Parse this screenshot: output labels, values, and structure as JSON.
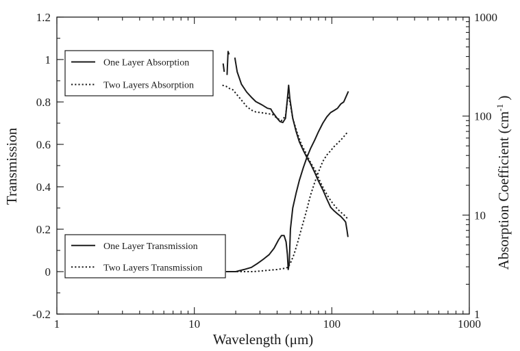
{
  "chart_data": {
    "type": "line",
    "title": "",
    "xlabel": "Wavelength (μm)",
    "ylabel_left": "Transmission",
    "ylabel_right_main": "Absorption Coefficient (cm",
    "ylabel_right_sup": "-1",
    "ylabel_right_close": " )",
    "x_scale": "log",
    "xlim": [
      1,
      1000
    ],
    "ylim_left": [
      -0.2,
      1.2
    ],
    "ylim_right": [
      1,
      1000
    ],
    "y_right_scale": "log",
    "grid": false,
    "x_ticks": [
      1,
      10,
      100,
      1000
    ],
    "x_tick_labels": [
      "1",
      "10",
      "100",
      "1000"
    ],
    "y_left_ticks": [
      -0.2,
      0,
      0.2,
      0.4,
      0.6,
      0.8,
      1,
      1.2
    ],
    "y_left_tick_labels": [
      "-0.2",
      "0",
      "0.2",
      "0.4",
      "0.6",
      "0.8",
      "1",
      "1.2"
    ],
    "y_right_ticks": [
      1,
      10,
      100,
      1000
    ],
    "y_right_tick_labels": [
      "1",
      "10",
      "100",
      "1000"
    ],
    "legends": [
      {
        "position": "upper-left",
        "entries": [
          {
            "label": "One Layer Absorption",
            "style": "solid"
          },
          {
            "label": "Two Layers Absorption",
            "style": "dotted"
          }
        ]
      },
      {
        "position": "lower-left",
        "entries": [
          {
            "label": "One Layer Transmission",
            "style": "solid"
          },
          {
            "label": "Two Layers Transmission",
            "style": "dotted"
          }
        ]
      }
    ],
    "series": [
      {
        "name": "One Layer Absorption",
        "axis": "right",
        "style": "solid",
        "segments": [
          [
            [
              16.2,
              340
            ],
            [
              16.5,
              280
            ]
          ],
          [
            [
              17.3,
              260
            ],
            [
              17.6,
              450
            ],
            [
              17.9,
              420
            ]
          ],
          [
            [
              19.7,
              390
            ],
            [
              20.5,
              280
            ],
            [
              22,
              210
            ],
            [
              24,
              175
            ],
            [
              26,
              155
            ],
            [
              28,
              140
            ],
            [
              31,
              130
            ],
            [
              34,
              120
            ],
            [
              36,
              118
            ],
            [
              37,
              110
            ],
            [
              40,
              95
            ],
            [
              42,
              88
            ],
            [
              44,
              86
            ],
            [
              46,
              95
            ],
            [
              47.5,
              150
            ],
            [
              48.5,
              205
            ],
            [
              49.5,
              150
            ],
            [
              52,
              95
            ],
            [
              55,
              70
            ],
            [
              58,
              55
            ],
            [
              62,
              45
            ],
            [
              66,
              38
            ],
            [
              70,
              33
            ],
            [
              75,
              27
            ],
            [
              80,
              22
            ],
            [
              86,
              18
            ],
            [
              92,
              14.5
            ],
            [
              98,
              12
            ],
            [
              104,
              11
            ],
            [
              110,
              10.3
            ],
            [
              116,
              9.7
            ],
            [
              122,
              9
            ],
            [
              126,
              8.5
            ],
            [
              129,
              7
            ],
            [
              131,
              6
            ]
          ]
        ]
      },
      {
        "name": "Two Layers Absorption",
        "axis": "right",
        "style": "dotted",
        "segments": [
          [
            [
              16,
              205
            ],
            [
              17,
              200
            ],
            [
              18,
              190
            ],
            [
              19,
              185
            ],
            [
              20,
              170
            ],
            [
              22,
              145
            ],
            [
              24,
              125
            ],
            [
              26,
              115
            ],
            [
              28,
              110
            ],
            [
              31,
              108
            ],
            [
              34,
              106
            ],
            [
              37,
              104
            ],
            [
              40,
              95
            ],
            [
              43,
              90
            ],
            [
              46,
              100
            ],
            [
              48,
              160
            ],
            [
              49.5,
              140
            ],
            [
              52,
              95
            ],
            [
              56,
              68
            ],
            [
              60,
              52
            ],
            [
              65,
              42
            ],
            [
              70,
              34
            ],
            [
              76,
              28
            ],
            [
              82,
              22
            ],
            [
              88,
              18
            ],
            [
              95,
              15
            ],
            [
              102,
              13
            ],
            [
              110,
              11.5
            ],
            [
              118,
              10.5
            ],
            [
              125,
              9.8
            ],
            [
              130,
              9.2
            ]
          ]
        ]
      },
      {
        "name": "One Layer Transmission",
        "axis": "left",
        "style": "solid",
        "segments": [
          [
            [
              17,
              0
            ],
            [
              20,
              0
            ],
            [
              23,
              0.01
            ],
            [
              26,
              0.02
            ],
            [
              29,
              0.04
            ],
            [
              32,
              0.06
            ],
            [
              35,
              0.08
            ],
            [
              38,
              0.11
            ],
            [
              41,
              0.15
            ],
            [
              43,
              0.17
            ],
            [
              45,
              0.17
            ],
            [
              46.5,
              0.14
            ],
            [
              47.5,
              0.08
            ],
            [
              48.2,
              0.01
            ],
            [
              49,
              0.04
            ],
            [
              50,
              0.2
            ],
            [
              52,
              0.3
            ],
            [
              55,
              0.37
            ],
            [
              58,
              0.43
            ],
            [
              62,
              0.49
            ],
            [
              66,
              0.54
            ],
            [
              70,
              0.58
            ],
            [
              75,
              0.62
            ],
            [
              80,
              0.66
            ],
            [
              86,
              0.7
            ],
            [
              92,
              0.73
            ],
            [
              98,
              0.75
            ],
            [
              104,
              0.76
            ],
            [
              110,
              0.77
            ],
            [
              116,
              0.79
            ],
            [
              122,
              0.8
            ],
            [
              128,
              0.83
            ],
            [
              132,
              0.85
            ]
          ]
        ]
      },
      {
        "name": "Two Layers Transmission",
        "axis": "left",
        "style": "dotted",
        "segments": [
          [
            [
              17,
              0
            ],
            [
              22,
              0
            ],
            [
              27,
              0
            ],
            [
              33,
              0.005
            ],
            [
              40,
              0.01
            ],
            [
              45,
              0.015
            ],
            [
              48,
              0.02
            ],
            [
              50,
              0.04
            ],
            [
              53,
              0.08
            ],
            [
              56,
              0.13
            ],
            [
              60,
              0.2
            ],
            [
              65,
              0.28
            ],
            [
              70,
              0.36
            ],
            [
              75,
              0.42
            ],
            [
              80,
              0.47
            ],
            [
              86,
              0.52
            ],
            [
              92,
              0.55
            ],
            [
              98,
              0.57
            ],
            [
              104,
              0.59
            ],
            [
              112,
              0.61
            ],
            [
              120,
              0.63
            ],
            [
              127,
              0.65
            ],
            [
              132,
              0.66
            ]
          ]
        ]
      }
    ]
  }
}
